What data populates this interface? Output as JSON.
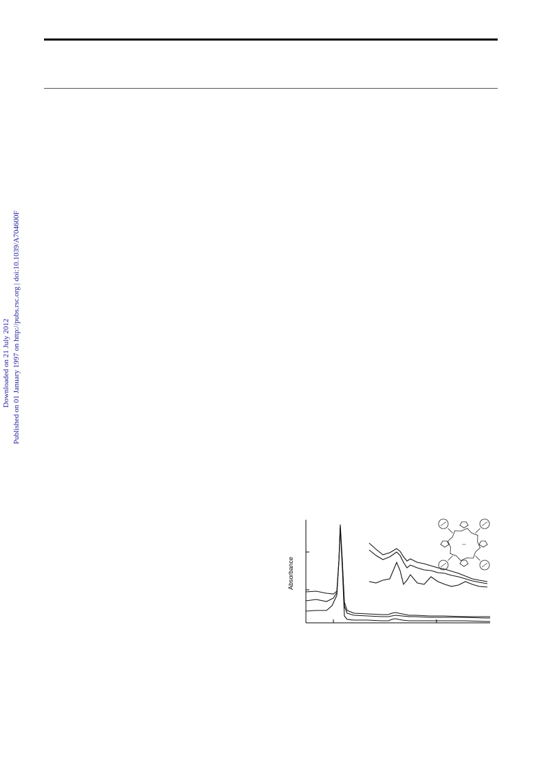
{
  "sidebar": {
    "downloaded": "Downloaded on 21 July 2012",
    "published": "Published on 01 January 1997 on http://pubs.rsc.org | doi:10.1039/A704600F"
  },
  "chart_data": {
    "type": "line",
    "ylabel": "Absorbance",
    "xlabel": "",
    "grid": false,
    "series": [
      {
        "x": [
          0,
          15,
          30,
          40,
          45,
          48,
          50,
          53,
          56,
          60,
          70,
          90,
          110,
          120,
          125,
          130,
          140,
          150,
          160,
          180,
          200,
          230,
          260,
          268
        ],
        "y": [
          45,
          46,
          43,
          42,
          46,
          90,
          143,
          90,
          30,
          18,
          14,
          13,
          12,
          12,
          14,
          15,
          13,
          11,
          11,
          10,
          10,
          9,
          9,
          9
        ]
      },
      {
        "x": [
          0,
          15,
          30,
          40,
          45,
          48,
          50,
          53,
          56,
          60,
          70,
          90,
          110,
          120,
          125,
          130,
          140,
          150,
          160,
          180,
          200,
          230,
          260,
          268
        ],
        "y": [
          32,
          34,
          31,
          36,
          44,
          90,
          140,
          88,
          24,
          14,
          11,
          10,
          9,
          9,
          10,
          11,
          10,
          9,
          9,
          8,
          8,
          8,
          7,
          7
        ]
      },
      {
        "x": [
          0,
          15,
          30,
          38,
          45,
          48,
          50,
          53,
          56,
          60,
          70,
          90,
          110,
          120,
          125,
          130,
          140,
          150,
          160,
          180,
          200,
          230,
          260,
          268
        ],
        "y": [
          17,
          18,
          18,
          25,
          40,
          90,
          138,
          80,
          10,
          5,
          4,
          4,
          3,
          3,
          5,
          6,
          4,
          3,
          3,
          3,
          3,
          3,
          2,
          2
        ]
      }
    ],
    "inset": [
      {
        "x": [
          0,
          10,
          20,
          30,
          40,
          45,
          50,
          55,
          60,
          70,
          80,
          90,
          100,
          110,
          120,
          130,
          140,
          150,
          160,
          172
        ],
        "y": [
          116,
          107,
          99,
          102,
          108,
          104,
          96,
          90,
          93,
          88,
          86,
          83,
          80,
          78,
          75,
          72,
          68,
          64,
          62,
          60
        ]
      },
      {
        "x": [
          0,
          10,
          20,
          30,
          40,
          45,
          50,
          55,
          60,
          70,
          80,
          90,
          100,
          110,
          120,
          130,
          140,
          150,
          160,
          172
        ],
        "y": [
          106,
          98,
          92,
          96,
          103,
          98,
          88,
          80,
          84,
          80,
          77,
          76,
          73,
          72,
          69,
          67,
          64,
          61,
          59,
          57
        ]
      },
      {
        "x": [
          0,
          10,
          20,
          30,
          40,
          45,
          50,
          55,
          60,
          70,
          80,
          90,
          100,
          110,
          120,
          130,
          140,
          150,
          160,
          172
        ],
        "y": [
          60,
          58,
          62,
          64,
          88,
          76,
          56,
          62,
          70,
          58,
          56,
          67,
          60,
          56,
          53,
          55,
          60,
          56,
          53,
          52
        ]
      }
    ]
  }
}
